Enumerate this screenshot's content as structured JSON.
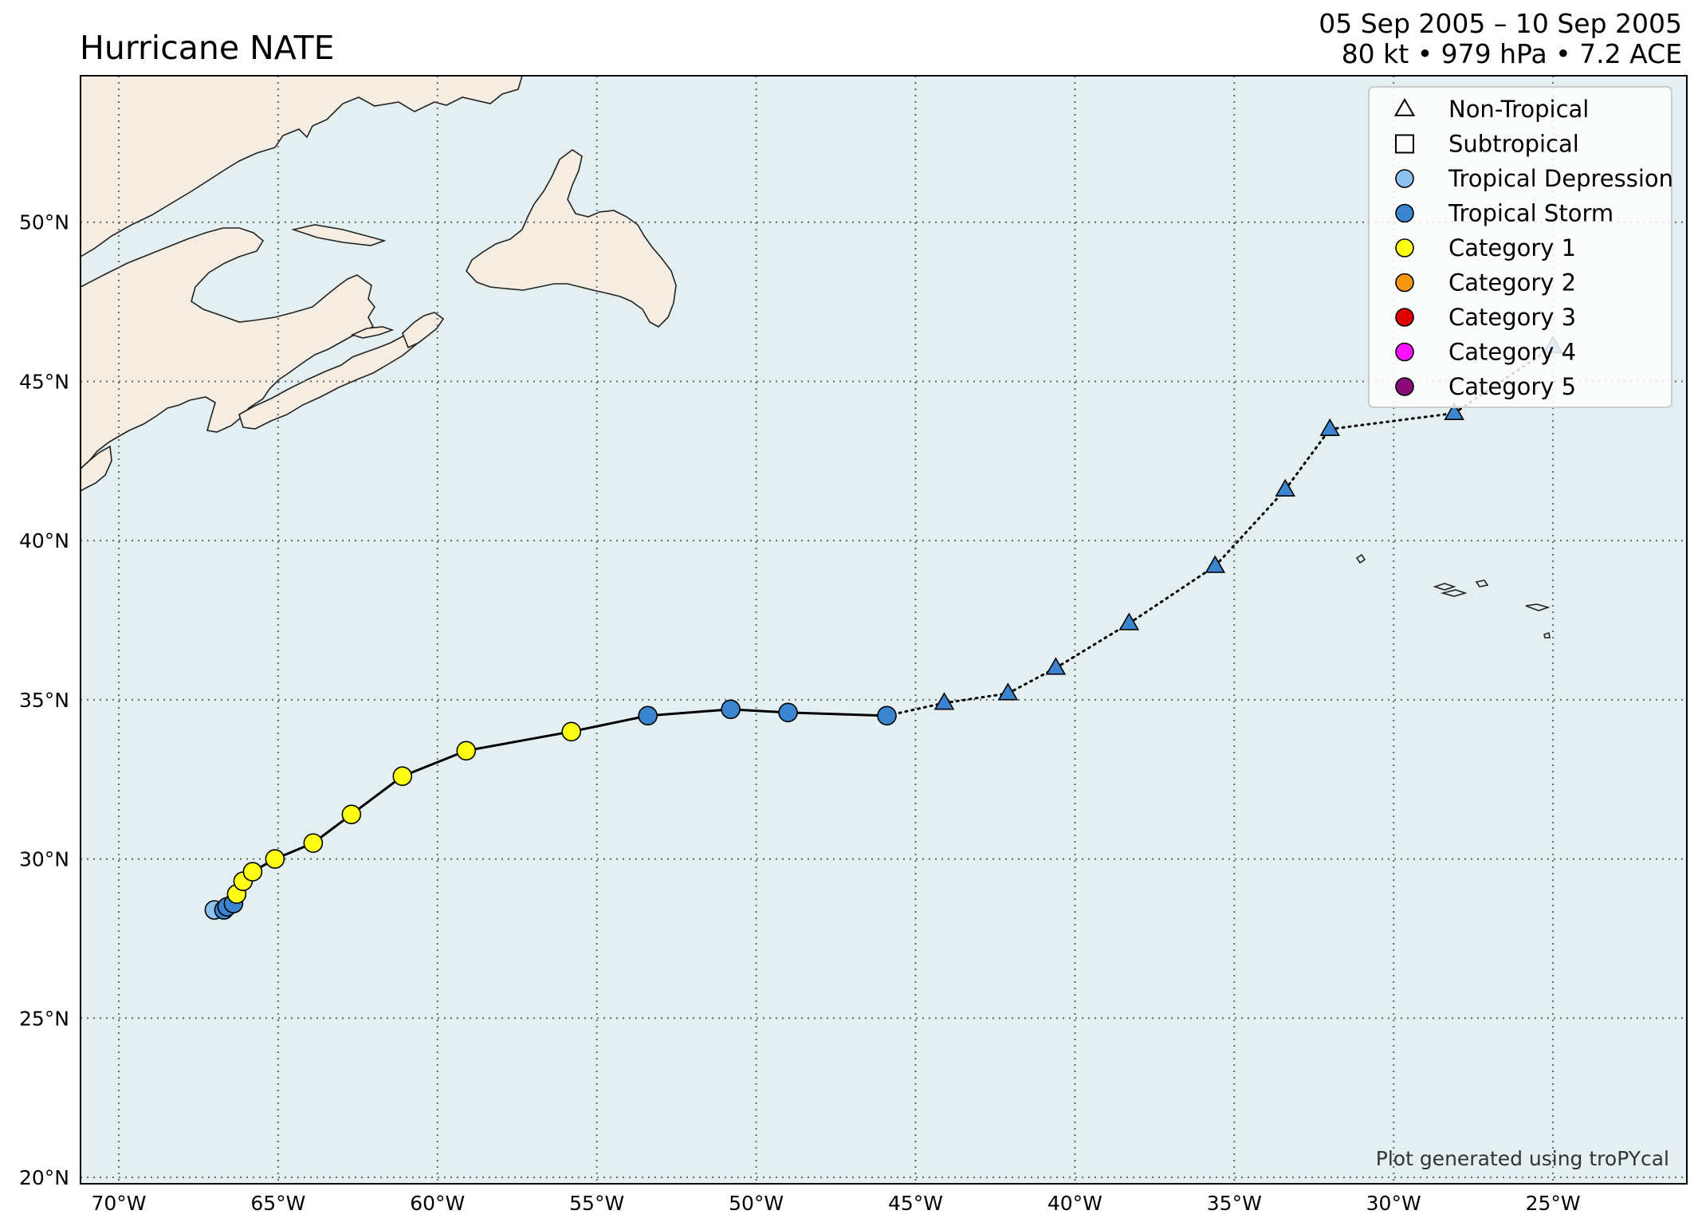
{
  "header": {
    "title": "Hurricane NATE",
    "date_range": "05 Sep 2005 – 10 Sep 2005",
    "summary": "80 kt • 979 hPa • 7.2 ACE"
  },
  "colors": {
    "ocean": "#e3eff1",
    "land": "#f5ede2",
    "coast": "#222222",
    "grid": "#666666",
    "tropical_depression": "#8fc1ef",
    "tropical_storm": "#3a84d0",
    "category_1": "#ffff14",
    "category_2": "#f7960f",
    "category_3": "#e00000",
    "category_4": "#ff10ff",
    "category_5": "#8b0a7a"
  },
  "map": {
    "lon_range": [
      -71.2,
      -20.8
    ],
    "lat_range": [
      19.8,
      54.6
    ],
    "lon_ticks": [
      -70,
      -65,
      -60,
      -55,
      -50,
      -45,
      -40,
      -35,
      -30,
      -25
    ],
    "lat_ticks": [
      20,
      25,
      30,
      35,
      40,
      45,
      50
    ],
    "lon_tick_labels": [
      "70°W",
      "65°W",
      "60°W",
      "55°W",
      "50°W",
      "45°W",
      "40°W",
      "35°W",
      "30°W",
      "25°W"
    ],
    "lat_tick_labels": [
      "20°N",
      "25°N",
      "30°N",
      "35°N",
      "40°N",
      "45°N",
      "50°N"
    ],
    "grid": true,
    "credit": "Plot generated using troPYcal"
  },
  "legend": {
    "placement": "top-right",
    "items": [
      {
        "label": "Non-Tropical",
        "shape": "triangle",
        "color": "none"
      },
      {
        "label": "Subtropical",
        "shape": "square",
        "color": "none"
      },
      {
        "label": "Tropical Depression",
        "shape": "circle",
        "color": "#8fc1ef"
      },
      {
        "label": "Tropical Storm",
        "shape": "circle",
        "color": "#3a84d0"
      },
      {
        "label": "Category 1",
        "shape": "circle",
        "color": "#ffff14"
      },
      {
        "label": "Category 2",
        "shape": "circle",
        "color": "#f7960f"
      },
      {
        "label": "Category 3",
        "shape": "circle",
        "color": "#e00000"
      },
      {
        "label": "Category 4",
        "shape": "circle",
        "color": "#ff10ff"
      },
      {
        "label": "Category 5",
        "shape": "circle",
        "color": "#8b0a7a"
      }
    ]
  },
  "chart_data": {
    "type": "scatter",
    "series_name": "Hurricane NATE track",
    "points": [
      {
        "lon": -67.0,
        "lat": 28.4,
        "status": "tropical_depression"
      },
      {
        "lon": -66.7,
        "lat": 28.4,
        "status": "tropical_storm"
      },
      {
        "lon": -66.6,
        "lat": 28.5,
        "status": "tropical_storm"
      },
      {
        "lon": -66.4,
        "lat": 28.6,
        "status": "tropical_storm"
      },
      {
        "lon": -66.3,
        "lat": 28.9,
        "status": "category_1"
      },
      {
        "lon": -66.1,
        "lat": 29.3,
        "status": "category_1"
      },
      {
        "lon": -65.8,
        "lat": 29.6,
        "status": "category_1"
      },
      {
        "lon": -65.1,
        "lat": 30.0,
        "status": "category_1"
      },
      {
        "lon": -63.9,
        "lat": 30.5,
        "status": "category_1"
      },
      {
        "lon": -62.7,
        "lat": 31.4,
        "status": "category_1"
      },
      {
        "lon": -61.1,
        "lat": 32.6,
        "status": "category_1"
      },
      {
        "lon": -59.1,
        "lat": 33.4,
        "status": "category_1"
      },
      {
        "lon": -55.8,
        "lat": 34.0,
        "status": "category_1"
      },
      {
        "lon": -53.4,
        "lat": 34.5,
        "status": "tropical_storm"
      },
      {
        "lon": -50.8,
        "lat": 34.7,
        "status": "tropical_storm"
      },
      {
        "lon": -49.0,
        "lat": 34.6,
        "status": "tropical_storm"
      },
      {
        "lon": -45.9,
        "lat": 34.5,
        "status": "tropical_storm"
      },
      {
        "lon": -44.1,
        "lat": 34.9,
        "status": "non_tropical"
      },
      {
        "lon": -42.1,
        "lat": 35.2,
        "status": "non_tropical"
      },
      {
        "lon": -40.6,
        "lat": 36.0,
        "status": "non_tropical"
      },
      {
        "lon": -38.3,
        "lat": 37.4,
        "status": "non_tropical"
      },
      {
        "lon": -35.6,
        "lat": 39.2,
        "status": "non_tropical"
      },
      {
        "lon": -33.4,
        "lat": 41.6,
        "status": "non_tropical"
      },
      {
        "lon": -32.0,
        "lat": 43.5,
        "status": "non_tropical"
      },
      {
        "lon": -28.1,
        "lat": 44.0,
        "status": "non_tropical"
      },
      {
        "lon": -25.0,
        "lat": 46.1,
        "status": "non_tropical"
      }
    ]
  }
}
